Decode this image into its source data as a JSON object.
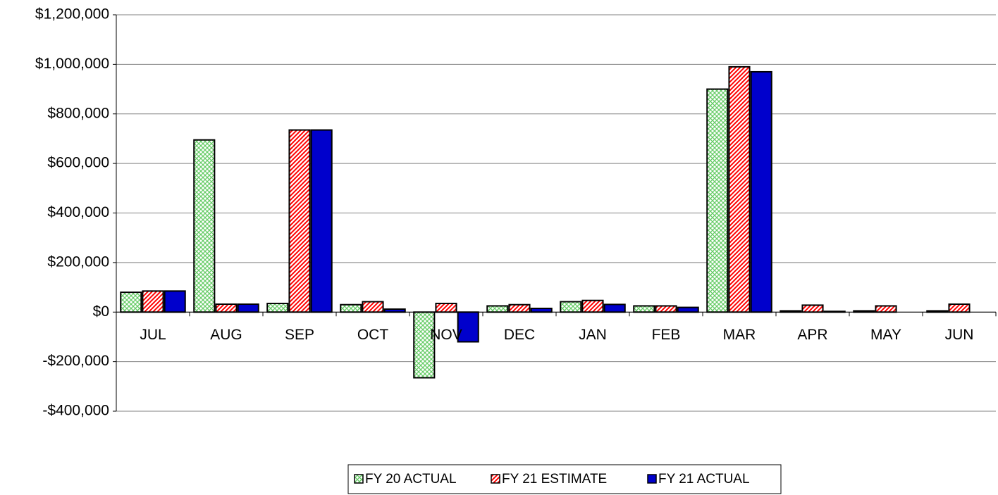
{
  "chart_data": {
    "type": "bar",
    "categories": [
      "JUL",
      "AUG",
      "SEP",
      "OCT",
      "NOV",
      "DEC",
      "JAN",
      "FEB",
      "MAR",
      "APR",
      "MAY",
      "JUN"
    ],
    "series": [
      {
        "name": "FY 20 ACTUAL",
        "color": "#66cc66",
        "pattern": "crosshatch",
        "values": [
          80000,
          695000,
          35000,
          30000,
          -265000,
          25000,
          42000,
          25000,
          900000,
          5000,
          5000,
          5000
        ]
      },
      {
        "name": "FY 21 ESTIMATE",
        "color": "#ff0000",
        "pattern": "diagonal",
        "values": [
          85000,
          32000,
          735000,
          42000,
          35000,
          30000,
          47000,
          25000,
          990000,
          28000,
          25000,
          32000
        ]
      },
      {
        "name": "FY 21 ACTUAL",
        "color": "#0000cc",
        "pattern": "solid",
        "values": [
          85000,
          32000,
          735000,
          12000,
          -120000,
          15000,
          31000,
          19000,
          970000,
          3000,
          null,
          null
        ]
      }
    ],
    "ylim": [
      -400000,
      1200000
    ],
    "yticks": [
      {
        "value": -400000,
        "label": "-$400,000"
      },
      {
        "value": -200000,
        "label": "-$200,000"
      },
      {
        "value": 0,
        "label": "$0"
      },
      {
        "value": 200000,
        "label": "$200,000"
      },
      {
        "value": 400000,
        "label": "$400,000"
      },
      {
        "value": 600000,
        "label": "$600,000"
      },
      {
        "value": 800000,
        "label": "$800,000"
      },
      {
        "value": 1000000,
        "label": "$1,000,000"
      },
      {
        "value": 1200000,
        "label": "$1,200,000"
      }
    ],
    "grid": true,
    "legend": "bottom"
  }
}
